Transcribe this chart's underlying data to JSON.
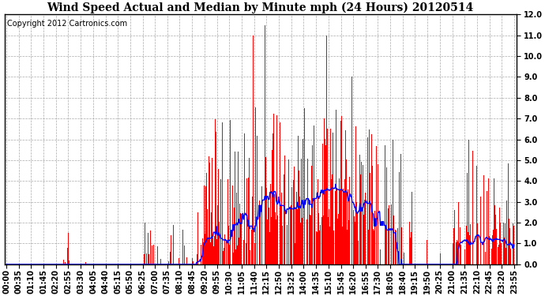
{
  "title": "Wind Speed Actual and Median by Minute mph (24 Hours) 20120514",
  "copyright_text": "Copyright 2012 Cartronics.com",
  "ylim": [
    0,
    12.0
  ],
  "yticks": [
    0.0,
    1.0,
    2.0,
    3.0,
    4.0,
    5.0,
    6.0,
    7.0,
    8.0,
    9.0,
    10.0,
    11.0,
    12.0
  ],
  "bar_color": "#ff0000",
  "line_color": "#0000ff",
  "bg_color": "#ffffff",
  "grid_color": "#aaaaaa",
  "title_fontsize": 10,
  "copyright_fontsize": 7,
  "tick_fontsize": 7,
  "tick_labels": [
    "00:00",
    "00:35",
    "01:10",
    "01:45",
    "02:20",
    "02:55",
    "03:30",
    "04:05",
    "04:40",
    "05:15",
    "05:50",
    "06:25",
    "07:00",
    "07:35",
    "08:10",
    "08:45",
    "09:20",
    "09:55",
    "10:30",
    "11:05",
    "11:40",
    "12:15",
    "12:50",
    "13:25",
    "14:00",
    "14:35",
    "15:10",
    "15:45",
    "16:20",
    "16:55",
    "17:30",
    "18:05",
    "18:40",
    "19:15",
    "19:50",
    "20:25",
    "21:00",
    "21:35",
    "22:10",
    "22:45",
    "23:20",
    "23:55"
  ]
}
